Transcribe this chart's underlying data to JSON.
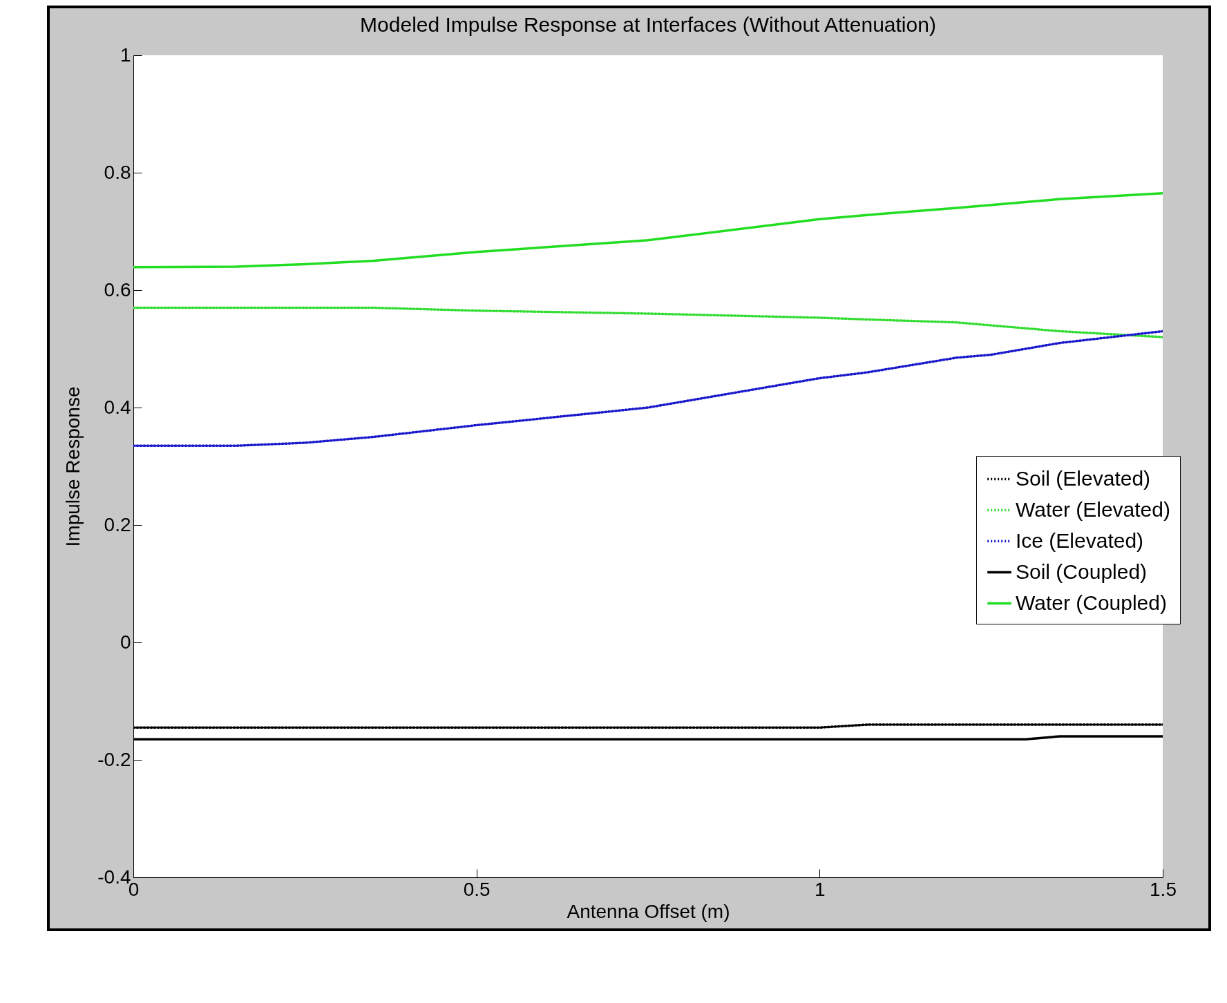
{
  "chart_data": {
    "type": "line",
    "title": "Modeled Impulse Response at Interfaces (Without Attenuation)",
    "xlabel": "Antenna Offset (m)",
    "ylabel": "Impulse Response",
    "x": [
      0,
      0.15,
      0.25,
      0.35,
      0.5,
      0.75,
      1.0,
      1.07,
      1.2,
      1.25,
      1.3,
      1.35,
      1.5
    ],
    "series": [
      {
        "name": "Soil (Elevated)",
        "color": "#000000",
        "line_style": "dotted",
        "values": [
          -0.145,
          -0.145,
          -0.145,
          -0.145,
          -0.145,
          -0.145,
          -0.145,
          -0.14,
          -0.14,
          -0.14,
          -0.14,
          -0.14,
          -0.14
        ]
      },
      {
        "name": "Water (Elevated)",
        "color": "#33dd33",
        "line_style": "dotted",
        "values": [
          0.57,
          0.57,
          0.57,
          0.57,
          0.565,
          0.56,
          0.553,
          0.55,
          0.545,
          0.54,
          0.535,
          0.53,
          0.52
        ]
      },
      {
        "name": "Ice (Elevated)",
        "color": "#1a1acc",
        "line_style": "dotted",
        "values": [
          0.335,
          0.335,
          0.34,
          0.35,
          0.37,
          0.4,
          0.45,
          0.46,
          0.485,
          0.49,
          0.5,
          0.51,
          0.53
        ]
      },
      {
        "name": "Soil (Coupled)",
        "color": "#000000",
        "line_style": "solid",
        "values": [
          -0.165,
          -0.165,
          -0.165,
          -0.165,
          -0.165,
          -0.165,
          -0.165,
          -0.165,
          -0.165,
          -0.165,
          -0.165,
          -0.16,
          -0.16
        ]
      },
      {
        "name": "Water (Coupled)",
        "color": "#22dd22",
        "line_style": "solid",
        "values": [
          0.639,
          0.64,
          0.644,
          0.65,
          0.665,
          0.685,
          0.721,
          0.728,
          0.74,
          0.745,
          0.75,
          0.755,
          0.765
        ]
      }
    ],
    "xlim": [
      0,
      1.5
    ],
    "xticks": [
      0,
      0.5,
      1,
      1.5
    ],
    "ylim": [
      -0.4,
      1
    ],
    "yticks": [
      -0.4,
      -0.2,
      0,
      0.2,
      0.4,
      0.6,
      0.8,
      1
    ],
    "grid": false,
    "legend": "right"
  }
}
